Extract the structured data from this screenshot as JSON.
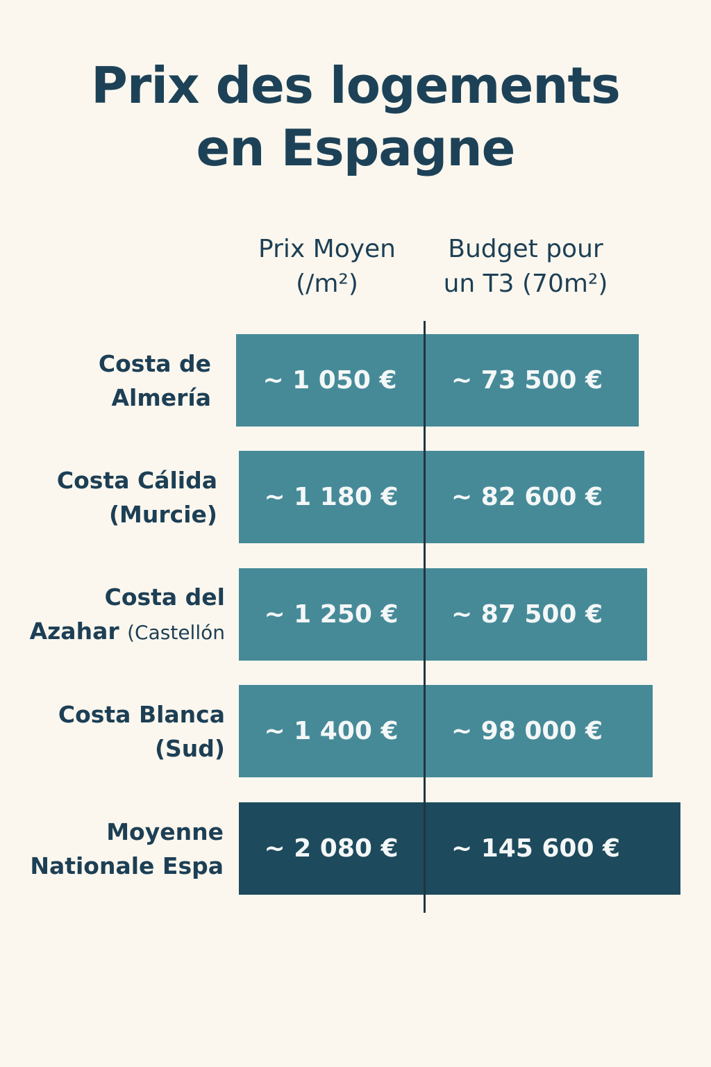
{
  "title_line1": "Prix des logements",
  "title_line2": "en Espagne",
  "chart_data": {
    "type": "table",
    "columns": [
      {
        "line1": "Prix Moyen",
        "line2": "(/m²)"
      },
      {
        "line1": "Budget pour",
        "line2": "un T3 (70m²)"
      }
    ],
    "rows": [
      {
        "label_line1": "Costa de",
        "label_line2": "Almería",
        "label_line2_small": "",
        "price_text": "~ 1 050 €",
        "budget_text": "~ 73 500 €",
        "price_per_m2": 1050,
        "budget_t3": 73500
      },
      {
        "label_line1": "Costa Cálida",
        "label_line2": "(Murcie)",
        "label_line2_small": "",
        "price_text": "~ 1 180 €",
        "budget_text": "~ 82 600 €",
        "price_per_m2": 1180,
        "budget_t3": 82600
      },
      {
        "label_line1": "Costa del",
        "label_line2": "Azahar",
        "label_line2_small": "(Castellón",
        "price_text": "~ 1 250 €",
        "budget_text": "~ 87 500 €",
        "price_per_m2": 1250,
        "budget_t3": 87500
      },
      {
        "label_line1": "Costa Blanca",
        "label_line2": "(Sud)",
        "label_line2_small": "",
        "price_text": "~ 1 400 €",
        "budget_text": "~ 98 000 €",
        "price_per_m2": 1400,
        "budget_t3": 98000
      },
      {
        "label_line1": "Moyenne",
        "label_line2": "Nationale Espa",
        "label_line2_small": "",
        "price_text": "~ 2 080 €",
        "budget_text": "~ 145 600 €",
        "price_per_m2": 2080,
        "budget_t3": 145600,
        "highlight": true
      }
    ]
  },
  "colors": {
    "background": "#fbf7ee",
    "title": "#1d4258",
    "bar": "#468a98",
    "bar_highlight": "#1d4a5c",
    "divider": "#23343e"
  }
}
